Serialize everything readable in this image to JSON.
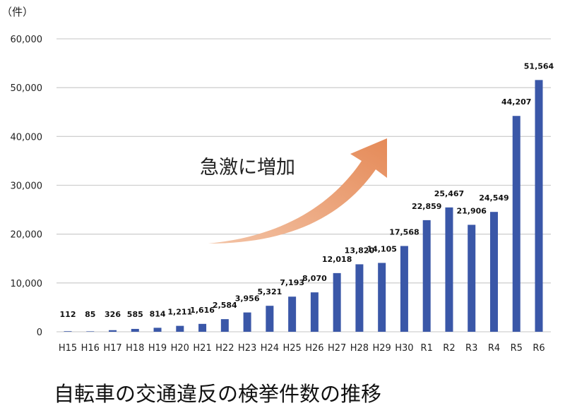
{
  "chart_data": {
    "type": "bar",
    "title": "自転車の交通違反の検挙件数の推移",
    "unit_label": "（件）",
    "annotation": "急激に増加",
    "categories": [
      "H15",
      "H16",
      "H17",
      "H18",
      "H19",
      "H20",
      "H21",
      "H22",
      "H23",
      "H24",
      "H25",
      "H26",
      "H27",
      "H28",
      "H29",
      "H30",
      "R1",
      "R2",
      "R3",
      "R4",
      "R5",
      "R6"
    ],
    "values": [
      112,
      85,
      326,
      585,
      814,
      1211,
      1616,
      2584,
      3956,
      5321,
      7193,
      8070,
      12018,
      13820,
      14105,
      17568,
      22859,
      25467,
      21906,
      24549,
      44207,
      51564
    ],
    "data_labels": [
      "112",
      "85",
      "326",
      "585",
      "814",
      "1,211",
      "1,616",
      "2,584",
      "3,956",
      "5,321",
      "7,193",
      "8,070",
      "12,018",
      "13,820",
      "14,105",
      "17,568",
      "22,859",
      "25,467",
      "21,906",
      "24,549",
      "44,207",
      "51,564"
    ],
    "yticks": [
      "0",
      "10,000",
      "20,000",
      "30,000",
      "40,000",
      "50,000",
      "60,000"
    ],
    "ylim": [
      0,
      60000
    ],
    "grid": true,
    "colors": {
      "bar": "#3a57a8",
      "arrow": "#e8956a",
      "grid": "#d0d0d0"
    }
  }
}
